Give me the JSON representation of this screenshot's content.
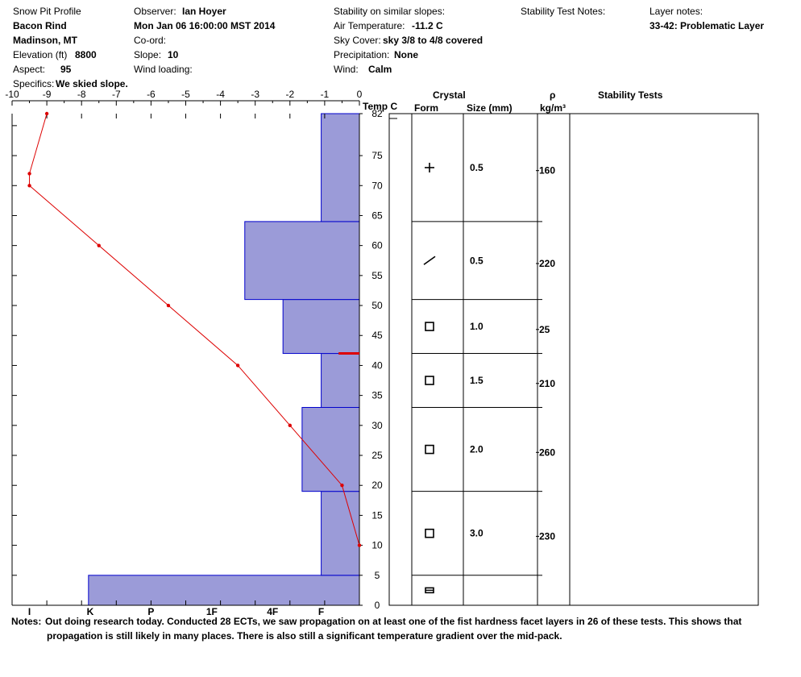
{
  "header": {
    "title": "Snow Pit Profile",
    "location": "Bacon Rind",
    "region": "Madinson, MT",
    "elevation_label": "Elevation (ft)",
    "elevation": "8800",
    "aspect_label": "Aspect:",
    "aspect": "95",
    "specifics_label": "Specifics:",
    "specifics": "We skied slope.",
    "observer_label": "Observer:",
    "observer": "Ian Hoyer",
    "datetime": "Mon Jan 06 16:00:00 MST 2014",
    "coord_label": "Co-ord:",
    "slope_label": "Slope:",
    "slope": "10",
    "wind_loading_label": "Wind loading:",
    "stability_label": "Stability on similar slopes:",
    "air_temp_label": "Air Temperature:",
    "air_temp": "-11.2 C",
    "sky_label": "Sky Cover:",
    "sky": "sky 3/8 to 4/8 covered",
    "precip_label": "Precipitation:",
    "precip": "None",
    "wind_label": "Wind:",
    "wind": "Calm",
    "stability_notes_label": "Stability Test Notes:",
    "layer_notes_label": "Layer notes:",
    "layer_note": "33-42: Problematic Layer"
  },
  "columns": {
    "temp": "Temp C",
    "crystal": "Crystal",
    "form": "Form",
    "size": "Size (mm)",
    "rho": "ρ",
    "density_unit": "kg/m³",
    "stability_tests": "Stability Tests"
  },
  "notes": {
    "label": "Notes:",
    "line1": "Out doing research today. Conducted 28 ECTs, we saw propagation on at least one of the fist hardness facet layers in 26 of these tests. This shows that",
    "line2": "propagation is still likely in many places. There is also still a significant temperature gradient over the mid-pack."
  },
  "chart_data": {
    "type": "snow_profile",
    "temp_axis": {
      "range": [
        -10,
        0
      ],
      "ticks": [
        "-10",
        "-9",
        "-8",
        "-7",
        "-6",
        "-5",
        "-4",
        "-3",
        "-2",
        "-1",
        "0"
      ]
    },
    "height_axis": {
      "range": [
        0,
        82
      ],
      "ticks": [
        "82",
        "75",
        "70",
        "65",
        "60",
        "55",
        "50",
        "45",
        "40",
        "35",
        "30",
        "25",
        "20",
        "15",
        "10",
        "5",
        "0"
      ]
    },
    "hardness_axis": {
      "labels": [
        "I",
        "K",
        "P",
        "1F",
        "4F",
        "F"
      ]
    },
    "hardness_layers": [
      {
        "bottom": 0,
        "top": 5,
        "value_deg": -7.8
      },
      {
        "bottom": 5,
        "top": 19,
        "value_deg": -1.1
      },
      {
        "bottom": 19,
        "top": 33,
        "value_deg": -1.65
      },
      {
        "bottom": 33,
        "top": 42,
        "value_deg": -1.1
      },
      {
        "bottom": 42,
        "top": 51,
        "value_deg": -2.2
      },
      {
        "bottom": 51,
        "top": 64,
        "value_deg": -3.3
      },
      {
        "bottom": 64,
        "top": 82,
        "value_deg": -1.1
      }
    ],
    "temperature_profile": [
      {
        "h": 82,
        "t": -9
      },
      {
        "h": 72,
        "t": -9.5
      },
      {
        "h": 70,
        "t": -9.5
      },
      {
        "h": 60,
        "t": -7.5
      },
      {
        "h": 50,
        "t": -5.5
      },
      {
        "h": 40,
        "t": -3.5
      },
      {
        "h": 30,
        "t": -2
      },
      {
        "h": 20,
        "t": -0.5
      },
      {
        "h": 10,
        "t": 0
      }
    ],
    "problem_layer_height": 42,
    "layer_boundaries": [
      0,
      5,
      19,
      33,
      42,
      51,
      64,
      82
    ],
    "layers": [
      {
        "bottom": 64,
        "top": 82,
        "form": "+",
        "size": "0.5",
        "density": "160",
        "density_h": 72.5
      },
      {
        "bottom": 51,
        "top": 64,
        "form": "/",
        "size": "0.5",
        "density": "220",
        "density_h": 57
      },
      {
        "bottom": 42,
        "top": 51,
        "form": "□",
        "size": "1.0",
        "density": "25",
        "density_h": 46
      },
      {
        "bottom": 33,
        "top": 42,
        "form": "□",
        "size": "1.5",
        "density": "210",
        "density_h": 37
      },
      {
        "bottom": 19,
        "top": 33,
        "form": "□",
        "size": "2.0",
        "density": "260",
        "density_h": 25.5
      },
      {
        "bottom": 5,
        "top": 19,
        "form": "□",
        "size": "3.0",
        "density": "230",
        "density_h": 11.5
      },
      {
        "bottom": 0,
        "top": 5,
        "form": "▭",
        "size": "",
        "density": "",
        "density_h": 2
      }
    ],
    "colors": {
      "hardness_fill": "#9b9bd8",
      "hardness_stroke": "#0000cc",
      "temperature": "#dd0000"
    }
  }
}
